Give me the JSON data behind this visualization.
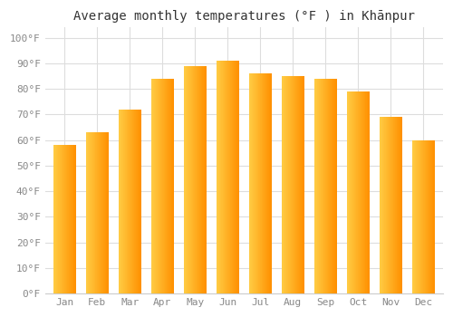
{
  "title": "Average monthly temperatures (°F ) in Khānpur",
  "months": [
    "Jan",
    "Feb",
    "Mar",
    "Apr",
    "May",
    "Jun",
    "Jul",
    "Aug",
    "Sep",
    "Oct",
    "Nov",
    "Dec"
  ],
  "values": [
    58,
    63,
    72,
    84,
    89,
    91,
    86,
    85,
    84,
    79,
    69,
    60
  ],
  "bar_color_left": "#FFB300",
  "bar_color_right": "#FF8C00",
  "yticks": [
    0,
    10,
    20,
    30,
    40,
    50,
    60,
    70,
    80,
    90,
    100
  ],
  "ytick_labels": [
    "0°F",
    "10°F",
    "20°F",
    "30°F",
    "40°F",
    "50°F",
    "60°F",
    "70°F",
    "80°F",
    "90°F",
    "100°F"
  ],
  "ylim": [
    0,
    104
  ],
  "background_color": "#ffffff",
  "grid_color": "#dddddd",
  "title_fontsize": 10,
  "tick_fontsize": 8
}
